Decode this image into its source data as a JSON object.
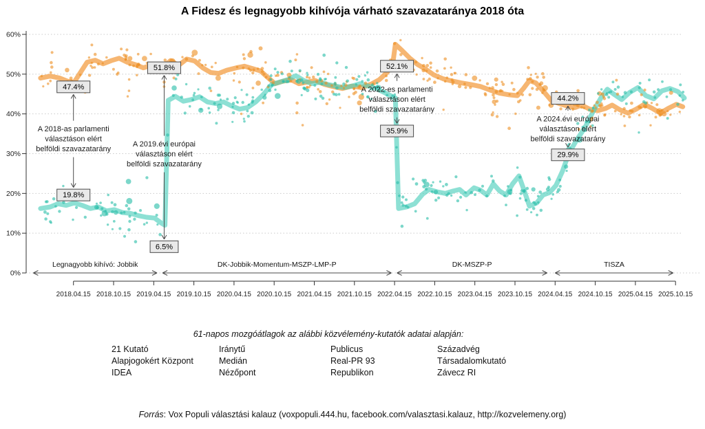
{
  "title": "A Fidesz és legnagyobb kihívója várható szavazataránya 2018 óta",
  "chart_data": {
    "type": "scatter",
    "title": "A Fidesz és legnagyobb kihívója várható szavazataránya 2018 óta",
    "ylim": [
      0,
      60
    ],
    "y_tick_labels": [
      "0%",
      "10%",
      "20%",
      "30%",
      "40%",
      "50%",
      "60%"
    ],
    "x_tick_labels": [
      "2018.04.15",
      "2018.10.15",
      "2019.04.15",
      "2019.10.15",
      "2020.04.15",
      "2020.10.15",
      "2021.04.15",
      "2021.10.15",
      "2022.04.15",
      "2022.10.15",
      "2023.04.15",
      "2023.10.15",
      "2024.04.15",
      "2024.10.15",
      "2025.04.15",
      "2025.10.15"
    ],
    "x_tick_start": 2018.29,
    "x_tick_step": 0.5,
    "grid": "dotted-horizontal",
    "series": [
      {
        "name": "Fidesz",
        "line_color": "#F4A14A",
        "line_opacity": 0.78,
        "dot_color": "#ED8E1F",
        "dot_opacity": 0.6,
        "points": [
          [
            2017.88,
            49.0
          ],
          [
            2018.0,
            49.5
          ],
          [
            2018.12,
            49.0
          ],
          [
            2018.22,
            48.2
          ],
          [
            2018.3,
            48.0
          ],
          [
            2018.38,
            50.5
          ],
          [
            2018.46,
            53.0
          ],
          [
            2018.56,
            53.5
          ],
          [
            2018.66,
            52.6
          ],
          [
            2018.76,
            53.4
          ],
          [
            2018.86,
            54.0
          ],
          [
            2018.96,
            53.0
          ],
          [
            2019.06,
            52.4
          ],
          [
            2019.16,
            51.6
          ],
          [
            2019.26,
            52.2
          ],
          [
            2019.33,
            51.3
          ],
          [
            2019.42,
            52.0
          ],
          [
            2019.5,
            53.4
          ],
          [
            2019.6,
            52.2
          ],
          [
            2019.7,
            53.8
          ],
          [
            2019.8,
            53.3
          ],
          [
            2019.9,
            51.6
          ],
          [
            2020.0,
            50.4
          ],
          [
            2020.1,
            50.2
          ],
          [
            2020.2,
            51.0
          ],
          [
            2020.32,
            51.6
          ],
          [
            2020.42,
            52.0
          ],
          [
            2020.52,
            51.4
          ],
          [
            2020.62,
            50.8
          ],
          [
            2020.72,
            49.0
          ],
          [
            2020.8,
            47.6
          ],
          [
            2020.9,
            48.2
          ],
          [
            2021.0,
            48.6
          ],
          [
            2021.1,
            47.6
          ],
          [
            2021.2,
            48.0
          ],
          [
            2021.3,
            48.4
          ],
          [
            2021.42,
            47.4
          ],
          [
            2021.54,
            46.8
          ],
          [
            2021.64,
            46.4
          ],
          [
            2021.76,
            47.0
          ],
          [
            2021.88,
            46.6
          ],
          [
            2022.0,
            47.5
          ],
          [
            2022.1,
            48.6
          ],
          [
            2022.2,
            50.5
          ],
          [
            2022.27,
            53.0
          ],
          [
            2022.3,
            57.5
          ],
          [
            2022.38,
            56.0
          ],
          [
            2022.48,
            54.0
          ],
          [
            2022.58,
            52.4
          ],
          [
            2022.68,
            51.2
          ],
          [
            2022.78,
            49.8
          ],
          [
            2022.9,
            48.8
          ],
          [
            2023.0,
            48.3
          ],
          [
            2023.12,
            47.8
          ],
          [
            2023.24,
            47.4
          ],
          [
            2023.36,
            46.9
          ],
          [
            2023.48,
            46.0
          ],
          [
            2023.6,
            45.2
          ],
          [
            2023.72,
            44.8
          ],
          [
            2023.82,
            44.6
          ],
          [
            2023.9,
            46.5
          ],
          [
            2023.97,
            48.4
          ],
          [
            2024.05,
            47.8
          ],
          [
            2024.14,
            45.8
          ],
          [
            2024.24,
            43.4
          ],
          [
            2024.34,
            42.6
          ],
          [
            2024.44,
            42.0
          ],
          [
            2024.54,
            41.6
          ],
          [
            2024.62,
            42.2
          ],
          [
            2024.72,
            41.2
          ],
          [
            2024.82,
            40.8
          ],
          [
            2024.92,
            41.4
          ],
          [
            2025.0,
            42.2
          ],
          [
            2025.1,
            41.0
          ],
          [
            2025.2,
            40.2
          ],
          [
            2025.3,
            41.2
          ],
          [
            2025.4,
            42.4
          ],
          [
            2025.5,
            41.4
          ],
          [
            2025.6,
            40.2
          ],
          [
            2025.7,
            41.4
          ],
          [
            2025.8,
            42.4
          ],
          [
            2025.88,
            41.8
          ]
        ]
      },
      {
        "name": "Legnagyobb kihívó",
        "line_color": "#47CDBA",
        "line_opacity": 0.62,
        "dot_color": "#2BBFA9",
        "dot_opacity": 0.62,
        "points": [
          [
            2017.88,
            16.2
          ],
          [
            2018.0,
            16.6
          ],
          [
            2018.1,
            17.4
          ],
          [
            2018.2,
            17.0
          ],
          [
            2018.3,
            17.6
          ],
          [
            2018.4,
            17.0
          ],
          [
            2018.5,
            16.2
          ],
          [
            2018.6,
            16.6
          ],
          [
            2018.7,
            15.6
          ],
          [
            2018.8,
            15.9
          ],
          [
            2018.9,
            15.2
          ],
          [
            2019.0,
            15.0
          ],
          [
            2019.1,
            14.4
          ],
          [
            2019.2,
            14.0
          ],
          [
            2019.3,
            13.8
          ],
          [
            2019.38,
            12.6
          ],
          [
            2019.43,
            12.0
          ],
          [
            2019.47,
            43.4
          ],
          [
            2019.56,
            44.4
          ],
          [
            2019.66,
            43.2
          ],
          [
            2019.76,
            43.6
          ],
          [
            2019.86,
            44.3
          ],
          [
            2019.96,
            43.0
          ],
          [
            2020.06,
            42.6
          ],
          [
            2020.16,
            43.0
          ],
          [
            2020.26,
            42.0
          ],
          [
            2020.36,
            41.2
          ],
          [
            2020.46,
            41.6
          ],
          [
            2020.56,
            43.0
          ],
          [
            2020.66,
            45.0
          ],
          [
            2020.76,
            47.4
          ],
          [
            2020.86,
            48.0
          ],
          [
            2020.96,
            48.6
          ],
          [
            2021.06,
            49.6
          ],
          [
            2021.16,
            48.4
          ],
          [
            2021.26,
            47.6
          ],
          [
            2021.36,
            48.0
          ],
          [
            2021.46,
            47.4
          ],
          [
            2021.56,
            47.0
          ],
          [
            2021.66,
            46.6
          ],
          [
            2021.76,
            47.0
          ],
          [
            2021.86,
            47.6
          ],
          [
            2021.96,
            47.0
          ],
          [
            2022.06,
            46.4
          ],
          [
            2022.16,
            45.4
          ],
          [
            2022.26,
            44.4
          ],
          [
            2022.3,
            44.0
          ],
          [
            2022.34,
            16.2
          ],
          [
            2022.44,
            16.6
          ],
          [
            2022.54,
            17.4
          ],
          [
            2022.64,
            19.8
          ],
          [
            2022.72,
            21.0
          ],
          [
            2022.82,
            20.4
          ],
          [
            2022.92,
            20.0
          ],
          [
            2023.02,
            20.6
          ],
          [
            2023.1,
            21.0
          ],
          [
            2023.18,
            19.6
          ],
          [
            2023.28,
            21.4
          ],
          [
            2023.36,
            20.8
          ],
          [
            2023.44,
            19.6
          ],
          [
            2023.52,
            22.4
          ],
          [
            2023.6,
            20.6
          ],
          [
            2023.68,
            19.6
          ],
          [
            2023.76,
            22.4
          ],
          [
            2023.84,
            24.4
          ],
          [
            2023.9,
            21.0
          ],
          [
            2023.97,
            16.8
          ],
          [
            2024.06,
            17.6
          ],
          [
            2024.14,
            19.6
          ],
          [
            2024.22,
            20.2
          ],
          [
            2024.3,
            22.0
          ],
          [
            2024.38,
            25.5
          ],
          [
            2024.46,
            30.0
          ],
          [
            2024.56,
            33.5
          ],
          [
            2024.66,
            36.5
          ],
          [
            2024.76,
            40.5
          ],
          [
            2024.86,
            44.0
          ],
          [
            2024.94,
            46.2
          ],
          [
            2025.02,
            45.0
          ],
          [
            2025.12,
            43.6
          ],
          [
            2025.22,
            45.4
          ],
          [
            2025.32,
            46.6
          ],
          [
            2025.42,
            44.6
          ],
          [
            2025.52,
            43.8
          ],
          [
            2025.62,
            45.8
          ],
          [
            2025.72,
            46.4
          ],
          [
            2025.82,
            45.6
          ],
          [
            2025.9,
            44.0
          ]
        ]
      }
    ],
    "scatter": {
      "per_series": 320,
      "sigma": 2.0,
      "outlier_sigma": 5.0,
      "outlier_frac": 0.2,
      "seed": 20180415
    },
    "annotations": [
      {
        "id": "election-2018",
        "x": 2018.29,
        "top_label": "47.4%",
        "top_val": 46.8,
        "text": [
          "A 2018-as parlamenti",
          "választáson elért",
          "belföldi szavazatarány"
        ],
        "text_val": 33.7,
        "bottom_label": "19.8%",
        "bottom_val": 19.6
      },
      {
        "id": "ep-2019",
        "x": 2019.42,
        "top_label": "51.8%",
        "top_val": 51.6,
        "text": [
          "A 2019.évi európai",
          "választáson elért",
          "belföldi szavazatarány"
        ],
        "text_val": 29.9,
        "bottom_label": "6.5%",
        "bottom_val": 6.6
      },
      {
        "id": "election-2022",
        "x": 2022.32,
        "top_label": "52.1%",
        "top_val": 52.0,
        "text": [
          "A 2022-es parlamenti",
          "választáson elért",
          "belföldi szavazatarány"
        ],
        "text_val": 43.7,
        "bottom_label": "35.9%",
        "bottom_val": 35.7
      },
      {
        "id": "ep-2024",
        "x": 2024.45,
        "top_label": "44.2%",
        "top_val": 43.9,
        "text": [
          "A 2024.évi európai",
          "választáson elért",
          "belföldi szavazatarány"
        ],
        "text_val": 36.2,
        "bottom_label": "29.9%",
        "bottom_val": 29.7
      }
    ],
    "segments": [
      {
        "label": "Legnagyobb kihívó: Jobbik",
        "from": 2017.79,
        "to": 2019.33
      },
      {
        "label": "DK-Jobbik-Momentum-MSZP-LMP-P",
        "from": 2019.4,
        "to": 2022.25
      },
      {
        "label": "DK-MSZP-P",
        "from": 2022.32,
        "to": 2024.19
      },
      {
        "label": "TISZA",
        "from": 2024.29,
        "to": 2025.76
      }
    ]
  },
  "footer": {
    "methodology": "61-napos mozgóátlagok az alábbi közvélemény-kutatók adatai alapján:",
    "pollster_columns": [
      {
        "x": 162,
        "items": [
          "21 Kutató",
          "Alapjogokért Központ",
          "IDEA"
        ]
      },
      {
        "x": 318,
        "items": [
          "Iránytű",
          "Medián",
          "Nézőpont"
        ]
      },
      {
        "x": 480,
        "items": [
          "Publicus",
          "Real-PR 93",
          "Republikon"
        ]
      },
      {
        "x": 635,
        "items": [
          "Századvég",
          "Társadalomkutató",
          "Závecz RI"
        ]
      }
    ],
    "source_prefix": "Forrás",
    "source_rest": ": Vox Populi választási kalauz (voxpopuli.444.hu, facebook.com/valasztasi.kalauz, http://kozvelemeny.org)"
  }
}
